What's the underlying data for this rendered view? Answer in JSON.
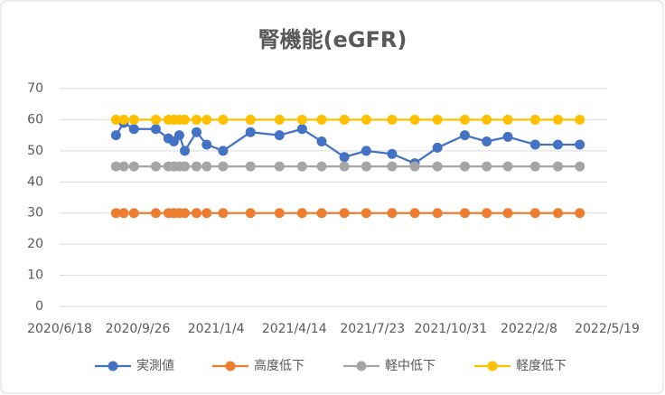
{
  "chart_data": {
    "type": "line",
    "title": "腎機能(eGFR)",
    "x": [
      "2020/8/29",
      "2020/9/8",
      "2020/9/21",
      "2020/10/19",
      "2020/11/4",
      "2020/11/11",
      "2020/11/18",
      "2020/11/25",
      "2020/12/10",
      "2020/12/23",
      "2021/1/13",
      "2021/2/17",
      "2021/3/26",
      "2021/4/24",
      "2021/5/19",
      "2021/6/17",
      "2021/7/15",
      "2021/8/17",
      "2021/9/15",
      "2021/10/14",
      "2021/11/18",
      "2021/12/16",
      "2022/1/12",
      "2022/2/16",
      "2022/3/17",
      "2022/4/14"
    ],
    "series": [
      {
        "name": "実測値",
        "color": "#4472c4",
        "values": [
          55,
          59,
          57,
          57,
          54,
          53,
          55,
          50,
          56,
          52,
          50,
          56,
          55,
          57,
          53,
          48,
          50,
          49,
          46,
          51,
          55,
          53,
          54.5,
          52,
          52,
          52
        ]
      },
      {
        "name": "高度低下",
        "color": "#ed7d31",
        "values": [
          30,
          30,
          30,
          30,
          30,
          30,
          30,
          30,
          30,
          30,
          30,
          30,
          30,
          30,
          30,
          30,
          30,
          30,
          30,
          30,
          30,
          30,
          30,
          30,
          30,
          30
        ]
      },
      {
        "name": "軽中低下",
        "color": "#a5a5a5",
        "values": [
          45,
          45,
          45,
          45,
          45,
          45,
          45,
          45,
          45,
          45,
          45,
          45,
          45,
          45,
          45,
          45,
          45,
          45,
          45,
          45,
          45,
          45,
          45,
          45,
          45,
          45
        ]
      },
      {
        "name": "軽度低下",
        "color": "#ffc000",
        "values": [
          60,
          60,
          60,
          60,
          60,
          60,
          60,
          60,
          60,
          60,
          60,
          60,
          60,
          60,
          60,
          60,
          60,
          60,
          60,
          60,
          60,
          60,
          60,
          60,
          60,
          60
        ]
      }
    ],
    "xlim": [
      "2020/6/18",
      "2022/5/19"
    ],
    "xticks": [
      "2020/6/18",
      "2020/9/26",
      "2021/1/4",
      "2021/4/14",
      "2021/7/23",
      "2021/10/31",
      "2022/2/8",
      "2022/5/19"
    ],
    "ylim": [
      0,
      70
    ],
    "yticks": [
      0,
      10,
      20,
      30,
      40,
      50,
      60,
      70
    ],
    "grid": true,
    "legend": "bottom"
  }
}
